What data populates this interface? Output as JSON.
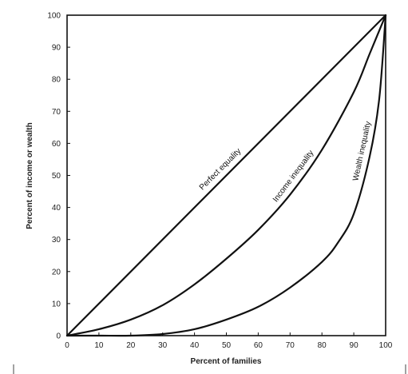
{
  "chart_data": {
    "type": "line",
    "title": "",
    "xlabel": "Percent of families",
    "ylabel": "Percent of income or wealth",
    "xlim": [
      0,
      100
    ],
    "ylim": [
      0,
      100
    ],
    "x_ticks": [
      "0",
      "10",
      "20",
      "30",
      "40",
      "50",
      "60",
      "70",
      "80",
      "90",
      "100"
    ],
    "y_ticks": [
      "0",
      "10",
      "20",
      "30",
      "40",
      "50",
      "60",
      "70",
      "80",
      "90",
      "100"
    ],
    "grid": false,
    "legend": "none",
    "series": [
      {
        "name": "Perfect equality",
        "x": [
          0,
          100
        ],
        "y": [
          0,
          100
        ]
      },
      {
        "name": "Income inequality",
        "x": [
          0,
          10,
          20,
          30,
          40,
          50,
          60,
          70,
          80,
          90,
          95,
          100
        ],
        "y": [
          0,
          2,
          5,
          9.5,
          16,
          24,
          33,
          44,
          58,
          76,
          88,
          100
        ]
      },
      {
        "name": "Wealth inequality",
        "x": [
          0,
          10,
          20,
          30,
          40,
          50,
          60,
          70,
          80,
          85,
          90,
          95,
          98,
          100
        ],
        "y": [
          0,
          0,
          0,
          0.5,
          2,
          5,
          9,
          15,
          23,
          29,
          38,
          56,
          74,
          100
        ]
      }
    ]
  }
}
